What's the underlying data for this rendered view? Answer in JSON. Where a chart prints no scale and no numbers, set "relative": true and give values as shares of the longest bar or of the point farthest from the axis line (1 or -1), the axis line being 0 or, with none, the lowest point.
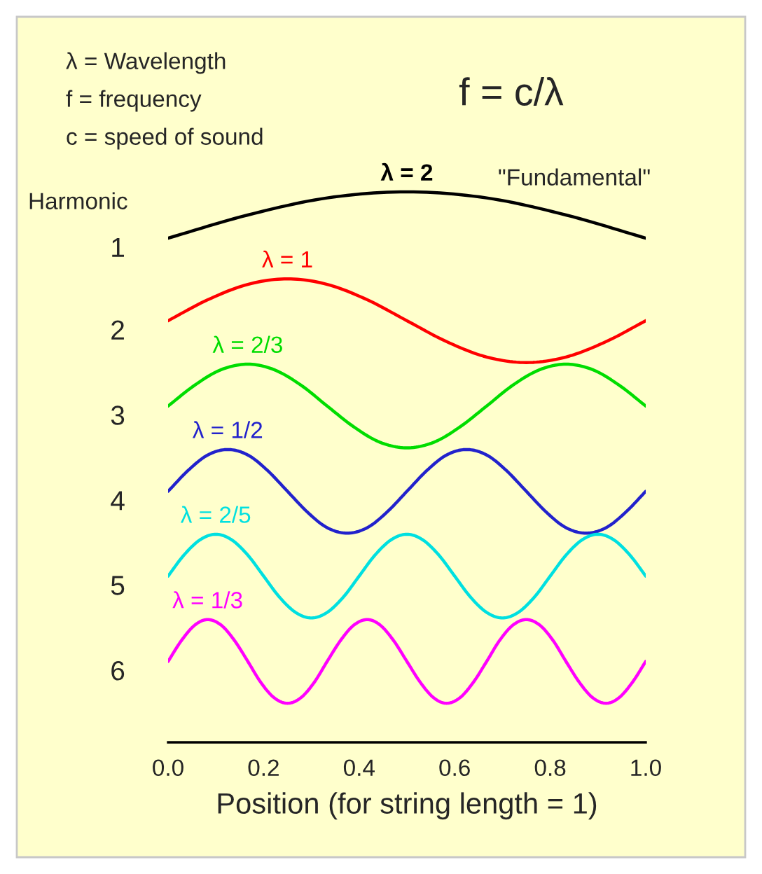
{
  "chart_data": {
    "type": "line",
    "relative": true,
    "xlabel": "Position (for string length = 1)",
    "xlim": [
      0,
      1
    ],
    "xticks": [
      {
        "value": 0,
        "label": "0.0"
      },
      {
        "value": 0.2,
        "label": "0.2"
      },
      {
        "value": 0.4,
        "label": "0.4"
      },
      {
        "value": 0.6,
        "label": "0.6"
      },
      {
        "value": 0.8,
        "label": "0.8"
      },
      {
        "value": 1,
        "label": "1.0"
      }
    ],
    "tick_labels": "x",
    "grid": false,
    "legend": false,
    "marker": "none",
    "line_style": "solid",
    "series": [
      {
        "name": "λ = 2",
        "color": "#000000",
        "x": [
          0,
          0.167,
          0.333,
          0.5,
          0.667,
          0.833,
          1
        ],
        "values": [
          0.916,
          0.958,
          0.989,
          1.0,
          0.989,
          0.958,
          0.916
        ]
      },
      {
        "name": "λ = 1",
        "color": "#ff0000",
        "x": [
          0,
          0.083,
          0.167,
          0.25,
          0.333,
          0.417,
          0.5,
          0.583,
          0.667,
          0.75,
          0.833,
          0.917,
          1
        ],
        "values": [
          0.766,
          0.804,
          0.832,
          0.842,
          0.832,
          0.804,
          0.766,
          0.728,
          0.7,
          0.69,
          0.7,
          0.728,
          0.766
        ]
      },
      {
        "name": "λ = 2/3",
        "color": "#00dd00",
        "x": [
          0,
          0.056,
          0.111,
          0.167,
          0.222,
          0.278,
          0.333,
          0.389,
          0.444,
          0.5,
          0.556,
          0.611,
          0.667,
          0.722,
          0.778,
          0.833,
          0.889,
          0.944,
          1
        ],
        "values": [
          0.611,
          0.649,
          0.677,
          0.687,
          0.677,
          0.649,
          0.611,
          0.573,
          0.545,
          0.535,
          0.545,
          0.573,
          0.611,
          0.649,
          0.677,
          0.687,
          0.677,
          0.649,
          0.611
        ]
      },
      {
        "name": "λ = 1/2",
        "color": "#2222cc",
        "x": [
          0,
          0.042,
          0.083,
          0.125,
          0.167,
          0.208,
          0.25,
          0.292,
          0.333,
          0.375,
          0.417,
          0.458,
          0.5,
          0.542,
          0.583,
          0.625,
          0.667,
          0.708,
          0.75,
          0.792,
          0.833,
          0.875,
          0.917,
          0.958,
          1
        ],
        "values": [
          0.456,
          0.494,
          0.522,
          0.532,
          0.522,
          0.494,
          0.456,
          0.418,
          0.39,
          0.38,
          0.39,
          0.418,
          0.456,
          0.494,
          0.522,
          0.532,
          0.522,
          0.494,
          0.456,
          0.418,
          0.39,
          0.38,
          0.39,
          0.418,
          0.456
        ]
      },
      {
        "name": "λ = 2/5",
        "color": "#00e0e0",
        "x": [
          0,
          0.033,
          0.067,
          0.1,
          0.133,
          0.167,
          0.2,
          0.233,
          0.267,
          0.3,
          0.333,
          0.367,
          0.4,
          0.433,
          0.467,
          0.5,
          0.533,
          0.567,
          0.6,
          0.633,
          0.667,
          0.7,
          0.733,
          0.767,
          0.8,
          0.833,
          0.867,
          0.9,
          0.933,
          0.967,
          1
        ],
        "values": [
          0.302,
          0.34,
          0.368,
          0.378,
          0.368,
          0.34,
          0.302,
          0.264,
          0.236,
          0.226,
          0.236,
          0.264,
          0.302,
          0.34,
          0.368,
          0.378,
          0.368,
          0.34,
          0.302,
          0.264,
          0.236,
          0.226,
          0.236,
          0.264,
          0.302,
          0.34,
          0.368,
          0.378,
          0.368,
          0.34,
          0.302
        ]
      },
      {
        "name": "λ = 1/3",
        "color": "#ff00ff",
        "x": [
          0,
          0.028,
          0.056,
          0.083,
          0.111,
          0.139,
          0.167,
          0.194,
          0.222,
          0.25,
          0.278,
          0.306,
          0.333,
          0.361,
          0.389,
          0.417,
          0.444,
          0.472,
          0.5,
          0.528,
          0.556,
          0.583,
          0.611,
          0.639,
          0.667,
          0.694,
          0.722,
          0.75,
          0.778,
          0.806,
          0.833,
          0.861,
          0.889,
          0.917,
          0.944,
          0.972,
          1
        ],
        "values": [
          0.147,
          0.185,
          0.213,
          0.223,
          0.213,
          0.185,
          0.147,
          0.109,
          0.081,
          0.071,
          0.081,
          0.109,
          0.147,
          0.185,
          0.213,
          0.223,
          0.213,
          0.185,
          0.147,
          0.109,
          0.081,
          0.071,
          0.081,
          0.109,
          0.147,
          0.185,
          0.213,
          0.223,
          0.213,
          0.185,
          0.147,
          0.109,
          0.081,
          0.071,
          0.081,
          0.109,
          0.147
        ]
      }
    ],
    "annotations": [
      "λ = Wavelength",
      "f = frequency",
      "c = speed of sound",
      "f = c/λ",
      "Harmonic",
      "\"Fundamental\"",
      "1",
      "2",
      "3",
      "4",
      "5",
      "6"
    ]
  }
}
